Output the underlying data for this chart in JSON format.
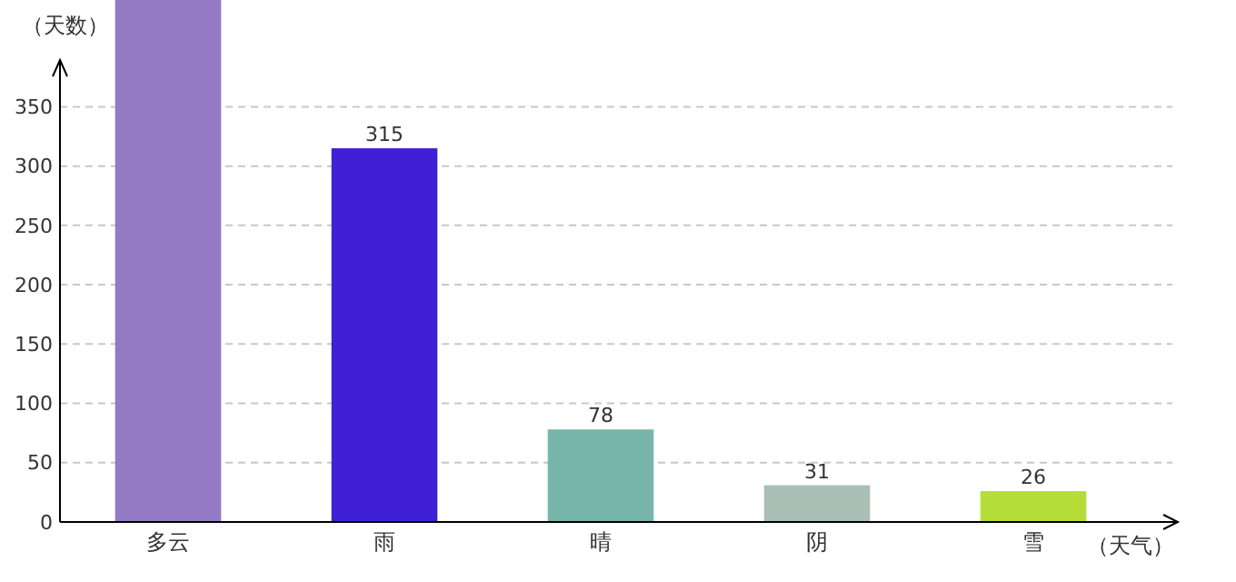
{
  "chart_data": {
    "type": "bar",
    "xlabel": "（天气）",
    "ylabel": "（天数）",
    "categories": [
      "多云",
      "雨",
      "晴",
      "阴",
      "雪"
    ],
    "values": [
      440,
      315,
      78,
      31,
      26
    ],
    "colors": [
      "#9479c4",
      "#3f20d4",
      "#77b5ab",
      "#aabfb6",
      "#b5dd3a"
    ],
    "value_labels": [
      null,
      "315",
      "78",
      "31",
      "26"
    ],
    "ylim": [
      0,
      440
    ],
    "yticks": [
      0,
      50,
      100,
      150,
      200,
      250,
      300,
      350
    ],
    "grid": "y"
  }
}
